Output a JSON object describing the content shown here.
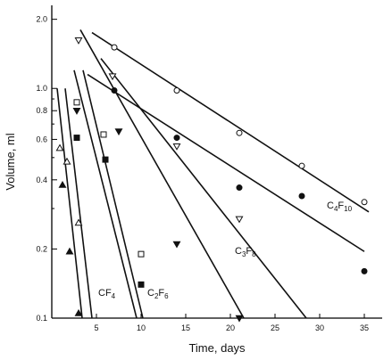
{
  "chart_data": {
    "type": "scatter",
    "xlabel": "Time, days",
    "ylabel": "Volume, ml",
    "xscale": "linear",
    "yscale": "log",
    "xlim": [
      0,
      37
    ],
    "ylim": [
      0.1,
      2.3
    ],
    "x_ticks": [
      5,
      10,
      15,
      20,
      25,
      30,
      35
    ],
    "x_tick_labels": [
      "5",
      "10",
      "15",
      "20",
      "25",
      "30",
      "35"
    ],
    "y_ticks": [
      0.1,
      0.2,
      0.4,
      0.6,
      0.8,
      1.0,
      2.0
    ],
    "y_tick_labels": [
      "0.1",
      "0.2",
      "0.4",
      "0.6",
      "0.8",
      "1.0",
      "2.0"
    ],
    "grid": false,
    "legend": "none",
    "labels": [
      {
        "text": "CF4",
        "base": "CF",
        "sub": "4",
        "x": 5.2,
        "y": 0.125
      },
      {
        "text": "C2F6",
        "base": "C",
        "sub1": "2",
        "mid": "F",
        "sub2": "6",
        "x": 10.7,
        "y": 0.125
      },
      {
        "text": "C3F8",
        "base": "C",
        "sub1": "3",
        "mid": "F",
        "sub2": "8",
        "x": 20.5,
        "y": 0.19
      },
      {
        "text": "C4F10",
        "base": "C",
        "sub1": "4",
        "mid": "F",
        "sub2": "10",
        "x": 30.8,
        "y": 0.3
      }
    ],
    "series": [
      {
        "marker": "filled-triangle-up",
        "points": [
          [
            1.2,
            0.38
          ],
          [
            2.0,
            0.195
          ],
          [
            3.0,
            0.105
          ]
        ]
      },
      {
        "marker": "open-triangle-up",
        "points": [
          [
            0.9,
            0.55
          ],
          [
            1.7,
            0.48
          ],
          [
            3.0,
            0.26
          ]
        ]
      },
      {
        "marker": "filled-triangle-down",
        "points": [
          [
            2.8,
            0.8
          ],
          [
            7.5,
            0.65
          ],
          [
            14.0,
            0.21
          ],
          [
            21.0,
            0.1
          ]
        ]
      },
      {
        "marker": "open-triangle-down",
        "points": [
          [
            3.0,
            1.62
          ],
          [
            6.8,
            1.13
          ],
          [
            14.0,
            0.56
          ],
          [
            21.0,
            0.27
          ]
        ]
      },
      {
        "marker": "filled-square",
        "points": [
          [
            2.8,
            0.61
          ],
          [
            6.0,
            0.49
          ],
          [
            10.0,
            0.14
          ]
        ]
      },
      {
        "marker": "open-square",
        "points": [
          [
            2.8,
            0.87
          ],
          [
            5.8,
            0.63
          ],
          [
            10.0,
            0.19
          ]
        ]
      },
      {
        "marker": "open-circle",
        "points": [
          [
            7.0,
            1.51
          ],
          [
            14.0,
            0.98
          ],
          [
            21.0,
            0.64
          ],
          [
            28.0,
            0.46
          ],
          [
            35.0,
            0.32
          ]
        ]
      },
      {
        "marker": "filled-circle",
        "points": [
          [
            7.0,
            0.98
          ],
          [
            14.0,
            0.61
          ],
          [
            21.0,
            0.37
          ],
          [
            28.0,
            0.34
          ],
          [
            35.0,
            0.16
          ]
        ]
      }
    ],
    "fit_lines": [
      {
        "from": [
          0.6,
          1.0
        ],
        "to": [
          3.4,
          0.1
        ]
      },
      {
        "from": [
          1.5,
          1.0
        ],
        "to": [
          4.5,
          0.1
        ]
      },
      {
        "from": [
          2.5,
          1.2
        ],
        "to": [
          9.5,
          0.1
        ]
      },
      {
        "from": [
          3.5,
          1.2
        ],
        "to": [
          10.2,
          0.1
        ]
      },
      {
        "from": [
          3.2,
          1.8
        ],
        "to": [
          21.5,
          0.1
        ]
      },
      {
        "from": [
          5.5,
          1.35
        ],
        "to": [
          28.5,
          0.1
        ]
      },
      {
        "from": [
          4.5,
          1.75
        ],
        "to": [
          35.5,
          0.29
        ]
      },
      {
        "from": [
          4.0,
          1.15
        ],
        "to": [
          35.0,
          0.195
        ]
      }
    ]
  }
}
